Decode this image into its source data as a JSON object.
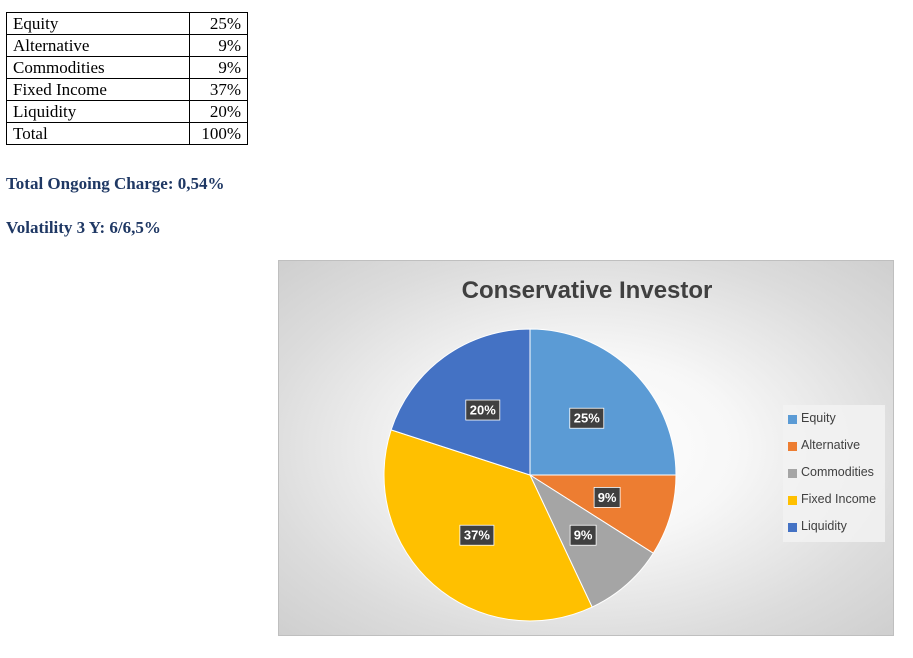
{
  "table": {
    "rows": [
      {
        "name": "Equity",
        "value": "25%"
      },
      {
        "name": "Alternative",
        "value": "9%"
      },
      {
        "name": "Commodities",
        "value": "9%"
      },
      {
        "name": "Fixed Income",
        "value": "37%"
      },
      {
        "name": "Liquidity",
        "value": "20%"
      },
      {
        "name": "Total",
        "value": "100%"
      }
    ]
  },
  "info": {
    "ongoing_charge": "Total Ongoing Charge: 0,54%",
    "volatility": "Volatility 3 Y: 6/6,5%"
  },
  "chart_data": {
    "type": "pie",
    "title": "Conservative Investor",
    "categories": [
      "Equity",
      "Alternative",
      "Commodities",
      "Fixed Income",
      "Liquidity"
    ],
    "values": [
      25,
      9,
      9,
      37,
      20
    ],
    "data_labels": [
      "25%",
      "9%",
      "9%",
      "37%",
      "20%"
    ],
    "colors": [
      "#5b9bd5",
      "#ed7d31",
      "#a5a5a5",
      "#ffc000",
      "#4472c4"
    ],
    "legend_position": "right"
  }
}
